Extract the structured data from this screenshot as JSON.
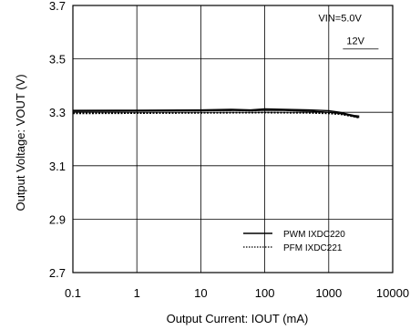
{
  "chart_data": {
    "type": "line",
    "xlabel": "Output Current: IOUT (mA)",
    "ylabel": "Output Voltage: VOUT (V)",
    "xscale": "log",
    "xlim": [
      0.1,
      10000
    ],
    "ylim": [
      2.7,
      3.7
    ],
    "xticks": [
      0.1,
      1,
      10,
      100,
      1000,
      10000
    ],
    "xtick_labels": [
      "0.1",
      "1",
      "10",
      "100",
      "1000",
      "10000"
    ],
    "yticks": [
      2.7,
      2.9,
      3.1,
      3.3,
      3.5,
      3.7
    ],
    "ytick_labels": [
      "2.7",
      "2.9",
      "3.1",
      "3.3",
      "3.5",
      "3.7"
    ],
    "grid": true,
    "annotations": [
      {
        "text": "VIN=5.0V",
        "x": 1500,
        "y": 3.64
      },
      {
        "text": "12V",
        "x": 1900,
        "y": 3.555
      }
    ],
    "legend": {
      "placement": "bottom-right",
      "entries": [
        {
          "label": "PWM  IXDC220",
          "style": "solid"
        },
        {
          "label": "PFM  IXDC221",
          "style": "dotted"
        }
      ]
    },
    "series": [
      {
        "style": "solid",
        "x": [
          0.1,
          1,
          10,
          30,
          60,
          100,
          200,
          500,
          1000,
          1500,
          2000,
          2500,
          3000
        ],
        "y": [
          3.307,
          3.308,
          3.309,
          3.311,
          3.309,
          3.313,
          3.311,
          3.309,
          3.306,
          3.3,
          3.293,
          3.288,
          3.286
        ]
      },
      {
        "style": "solid",
        "x": [
          0.1,
          1,
          10,
          30,
          60,
          100,
          200,
          500,
          1000,
          1500,
          2000,
          2500,
          3000
        ],
        "y": [
          3.304,
          3.305,
          3.306,
          3.307,
          3.306,
          3.308,
          3.307,
          3.304,
          3.3,
          3.296,
          3.29,
          3.284,
          3.281
        ]
      },
      {
        "style": "dotted",
        "x": [
          0.1,
          1,
          10,
          100,
          500,
          1000,
          1500,
          2000,
          2500,
          3000
        ],
        "y": [
          3.297,
          3.298,
          3.299,
          3.3,
          3.299,
          3.297,
          3.294,
          3.289,
          3.284,
          3.281
        ]
      },
      {
        "style": "dotted",
        "x": [
          0.1,
          1,
          10,
          100,
          500,
          1000,
          1500,
          2000,
          2500,
          3000
        ],
        "y": [
          3.295,
          3.296,
          3.297,
          3.298,
          3.297,
          3.295,
          3.292,
          3.287,
          3.283,
          3.279
        ]
      }
    ]
  }
}
